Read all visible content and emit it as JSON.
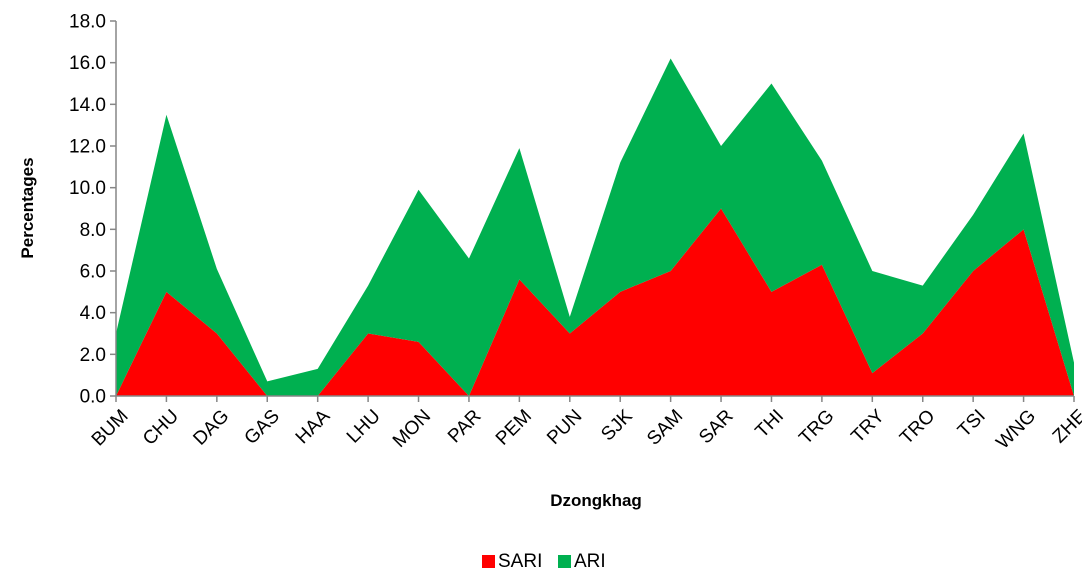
{
  "chart_data": {
    "type": "area",
    "stacked": true,
    "title": "",
    "xlabel": "Dzongkhag",
    "ylabel": "Percentages",
    "ylim": [
      0,
      18
    ],
    "yticks": [
      "0.0",
      "2.0",
      "4.0",
      "6.0",
      "8.0",
      "10.0",
      "12.0",
      "14.0",
      "16.0",
      "18.0"
    ],
    "grid": false,
    "legend_position": "bottom",
    "categories": [
      "BUM",
      "CHU",
      "DAG",
      "GAS",
      "HAA",
      "LHU",
      "MON",
      "PAR",
      "PEM",
      "PUN",
      "SJK",
      "SAM",
      "SAR",
      "THI",
      "TRG",
      "TRY",
      "TRO",
      "TSI",
      "WNG",
      "ZHE"
    ],
    "series": [
      {
        "name": "SARI",
        "color": "#ff0000",
        "values": [
          0,
          5.0,
          3.0,
          0,
          0,
          3.0,
          2.6,
          0,
          5.6,
          3.0,
          5.0,
          6.0,
          9.0,
          5.0,
          6.3,
          1.1,
          3.0,
          6.0,
          8.0,
          0
        ]
      },
      {
        "name": "ARI",
        "color": "#00b050",
        "values": [
          3.0,
          8.5,
          3.1,
          0.7,
          1.3,
          2.3,
          7.3,
          6.6,
          6.3,
          0.8,
          6.2,
          10.2,
          3.0,
          10.0,
          5.0,
          4.9,
          2.3,
          2.7,
          4.6,
          1.6
        ]
      }
    ]
  }
}
